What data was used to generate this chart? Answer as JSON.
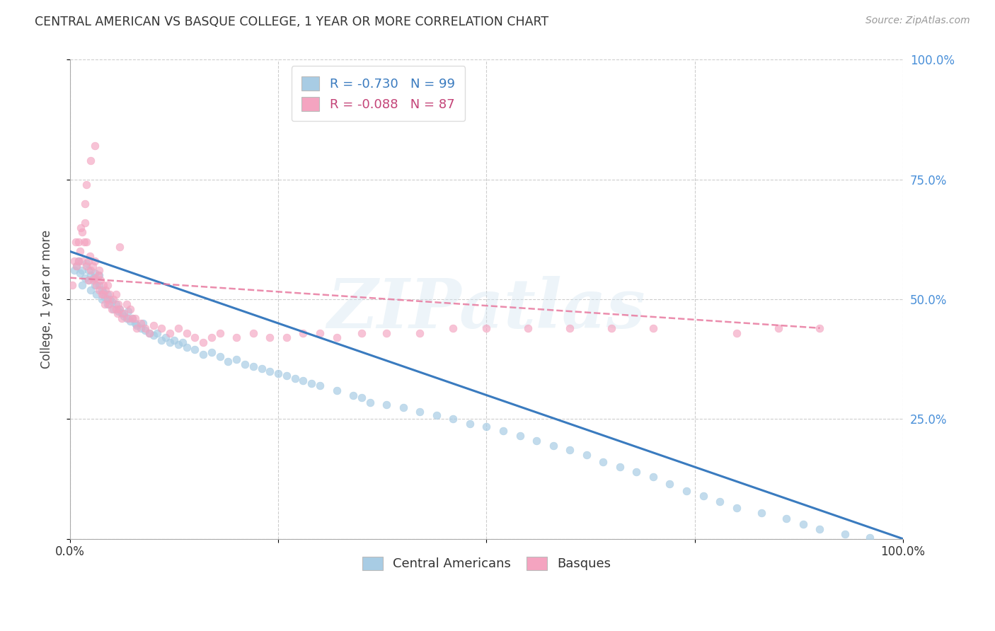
{
  "title": "CENTRAL AMERICAN VS BASQUE COLLEGE, 1 YEAR OR MORE CORRELATION CHART",
  "source": "Source: ZipAtlas.com",
  "ylabel": "College, 1 year or more",
  "xlim": [
    0,
    1
  ],
  "ylim": [
    0,
    1
  ],
  "watermark": "ZIPatlas",
  "legend_r_blue": "-0.730",
  "legend_n_blue": "99",
  "legend_r_pink": "-0.088",
  "legend_n_pink": "87",
  "legend_label_blue": "Central Americans",
  "legend_label_pink": "Basques",
  "blue_dot_color": "#a8cce4",
  "blue_line_color": "#3a7bbf",
  "pink_dot_color": "#f4a4c0",
  "pink_line_color": "#e8799f",
  "right_tick_color": "#4a90d9",
  "grid_color": "#c8c8c8",
  "background_color": "#ffffff",
  "blue_trendline_x": [
    0.0,
    1.0
  ],
  "blue_trendline_y": [
    0.6,
    0.0
  ],
  "pink_trendline_x": [
    0.0,
    0.9
  ],
  "pink_trendline_y": [
    0.545,
    0.44
  ],
  "blue_scatter_x": [
    0.005,
    0.008,
    0.01,
    0.012,
    0.015,
    0.015,
    0.018,
    0.02,
    0.022,
    0.022,
    0.025,
    0.025,
    0.028,
    0.03,
    0.03,
    0.032,
    0.035,
    0.035,
    0.038,
    0.038,
    0.04,
    0.042,
    0.045,
    0.045,
    0.048,
    0.05,
    0.052,
    0.055,
    0.058,
    0.06,
    0.062,
    0.065,
    0.068,
    0.07,
    0.072,
    0.075,
    0.078,
    0.08,
    0.085,
    0.088,
    0.09,
    0.095,
    0.1,
    0.105,
    0.11,
    0.115,
    0.12,
    0.125,
    0.13,
    0.135,
    0.14,
    0.15,
    0.16,
    0.17,
    0.18,
    0.19,
    0.2,
    0.21,
    0.22,
    0.23,
    0.24,
    0.25,
    0.26,
    0.27,
    0.28,
    0.29,
    0.3,
    0.32,
    0.34,
    0.35,
    0.36,
    0.38,
    0.4,
    0.42,
    0.44,
    0.46,
    0.48,
    0.5,
    0.52,
    0.54,
    0.56,
    0.58,
    0.6,
    0.62,
    0.64,
    0.66,
    0.68,
    0.7,
    0.72,
    0.74,
    0.76,
    0.78,
    0.8,
    0.83,
    0.86,
    0.88,
    0.9,
    0.93,
    0.96
  ],
  "blue_scatter_y": [
    0.56,
    0.57,
    0.58,
    0.555,
    0.56,
    0.53,
    0.545,
    0.575,
    0.56,
    0.54,
    0.55,
    0.52,
    0.545,
    0.555,
    0.53,
    0.51,
    0.53,
    0.55,
    0.52,
    0.5,
    0.515,
    0.505,
    0.51,
    0.49,
    0.5,
    0.495,
    0.48,
    0.49,
    0.475,
    0.48,
    0.47,
    0.465,
    0.46,
    0.475,
    0.455,
    0.46,
    0.45,
    0.445,
    0.44,
    0.45,
    0.435,
    0.43,
    0.425,
    0.43,
    0.415,
    0.42,
    0.41,
    0.415,
    0.405,
    0.41,
    0.4,
    0.395,
    0.385,
    0.39,
    0.38,
    0.37,
    0.375,
    0.365,
    0.36,
    0.355,
    0.35,
    0.345,
    0.34,
    0.335,
    0.33,
    0.325,
    0.32,
    0.31,
    0.3,
    0.295,
    0.285,
    0.28,
    0.275,
    0.265,
    0.258,
    0.25,
    0.24,
    0.235,
    0.225,
    0.215,
    0.205,
    0.195,
    0.185,
    0.175,
    0.16,
    0.15,
    0.14,
    0.13,
    0.115,
    0.1,
    0.09,
    0.078,
    0.065,
    0.055,
    0.042,
    0.03,
    0.02,
    0.01,
    0.003
  ],
  "pink_scatter_x": [
    0.003,
    0.005,
    0.007,
    0.008,
    0.01,
    0.01,
    0.012,
    0.013,
    0.015,
    0.015,
    0.017,
    0.018,
    0.02,
    0.02,
    0.022,
    0.022,
    0.024,
    0.025,
    0.027,
    0.028,
    0.03,
    0.03,
    0.032,
    0.034,
    0.035,
    0.035,
    0.037,
    0.038,
    0.04,
    0.04,
    0.042,
    0.043,
    0.045,
    0.045,
    0.047,
    0.048,
    0.05,
    0.052,
    0.055,
    0.055,
    0.057,
    0.058,
    0.06,
    0.062,
    0.065,
    0.068,
    0.07,
    0.072,
    0.075,
    0.078,
    0.08,
    0.085,
    0.09,
    0.095,
    0.1,
    0.11,
    0.12,
    0.13,
    0.14,
    0.15,
    0.16,
    0.17,
    0.18,
    0.2,
    0.22,
    0.24,
    0.26,
    0.28,
    0.3,
    0.32,
    0.35,
    0.38,
    0.42,
    0.46,
    0.5,
    0.55,
    0.6,
    0.65,
    0.7,
    0.8,
    0.85,
    0.9,
    0.03,
    0.025,
    0.02,
    0.018,
    0.06
  ],
  "pink_scatter_y": [
    0.53,
    0.58,
    0.62,
    0.57,
    0.62,
    0.58,
    0.6,
    0.65,
    0.64,
    0.58,
    0.62,
    0.66,
    0.62,
    0.57,
    0.58,
    0.54,
    0.59,
    0.56,
    0.57,
    0.54,
    0.545,
    0.58,
    0.53,
    0.55,
    0.56,
    0.52,
    0.54,
    0.51,
    0.53,
    0.51,
    0.49,
    0.52,
    0.5,
    0.53,
    0.49,
    0.51,
    0.48,
    0.5,
    0.48,
    0.51,
    0.47,
    0.49,
    0.48,
    0.46,
    0.47,
    0.49,
    0.46,
    0.48,
    0.46,
    0.46,
    0.44,
    0.45,
    0.44,
    0.43,
    0.445,
    0.44,
    0.43,
    0.44,
    0.43,
    0.42,
    0.41,
    0.42,
    0.43,
    0.42,
    0.43,
    0.42,
    0.42,
    0.43,
    0.43,
    0.42,
    0.43,
    0.43,
    0.43,
    0.44,
    0.44,
    0.44,
    0.44,
    0.44,
    0.44,
    0.43,
    0.44,
    0.44,
    0.82,
    0.79,
    0.74,
    0.7,
    0.61
  ],
  "title_fontsize": 12.5,
  "scatter_size": 60
}
